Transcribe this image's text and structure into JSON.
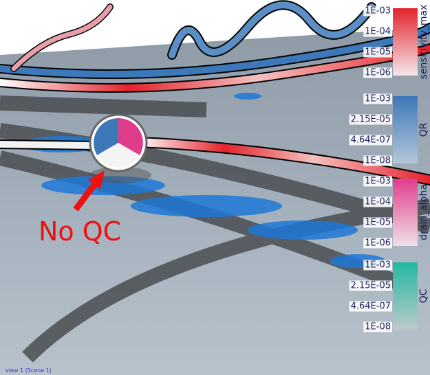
{
  "annotation": "No QC",
  "footer": "view 1 (Scene 1)",
  "legends": [
    {
      "title": "sensitivity_max",
      "colors": [
        "#e3232c",
        "#f4e8ea"
      ],
      "ticks": [
        "1E-03",
        "1E-04",
        "1E-05",
        "1E-06"
      ]
    },
    {
      "title": "QR",
      "colors": [
        "#3d78b8",
        "#b3c6d9"
      ],
      "ticks": [
        "1E-03",
        "2.15E-05",
        "4.64E-07",
        "1E-08"
      ]
    },
    {
      "title": "drain_alpha",
      "colors": [
        "#e03c8c",
        "#f1e0e8"
      ],
      "ticks": [
        "1E-03",
        "1E-04",
        "1E-05",
        "1E-06"
      ]
    },
    {
      "title": "QC",
      "colors": [
        "#22b8a0",
        "#bccaca"
      ],
      "ticks": [
        "1E-03",
        "2.15E-05",
        "4.64E-07",
        "1E-08"
      ]
    }
  ]
}
